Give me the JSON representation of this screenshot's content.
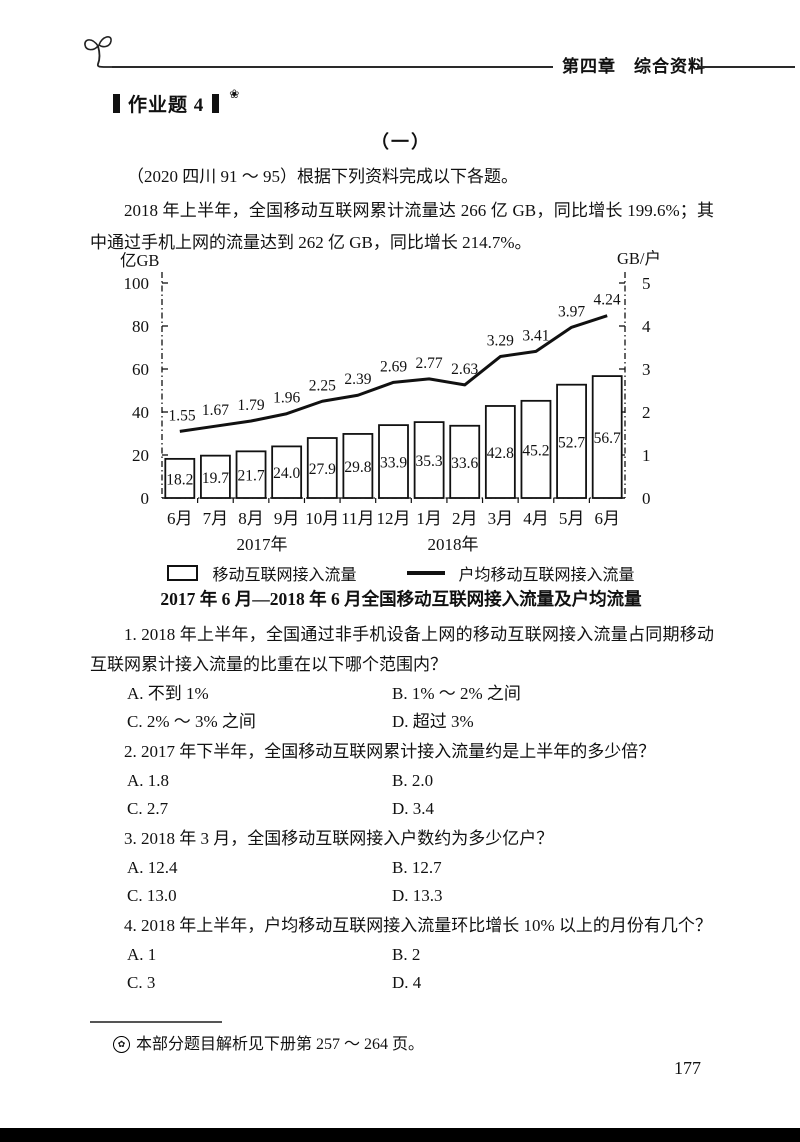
{
  "header": {
    "chapter": "第四章　综合资料"
  },
  "assignment": {
    "title": "作业题 4",
    "badge": "❀"
  },
  "part_heading": "（一）",
  "source_line": "（2020 四川 91 ～ 95）根据下列资料完成以下各题。",
  "intro_paragraph": "2018 年上半年，全国移动互联网累计流量达 266 亿 GB，同比增长 199.6%；其中通过手机上网的流量达到 262 亿 GB，同比增长 214.7%。",
  "chart_data": {
    "type": "bar+line",
    "title": "2017 年 6 月—2018 年 6 月全国移动互联网接入流量及户均流量",
    "categories": [
      "6月",
      "7月",
      "8月",
      "9月",
      "10月",
      "11月",
      "12月",
      "1月",
      "2月",
      "3月",
      "4月",
      "5月",
      "6月"
    ],
    "series": [
      {
        "name": "移动互联网接入流量",
        "type": "bar",
        "axis": "left",
        "values": [
          18.2,
          19.7,
          21.7,
          24.0,
          27.9,
          29.8,
          33.9,
          35.3,
          33.6,
          42.8,
          45.2,
          52.7,
          56.7
        ],
        "value_labels": [
          "18.2",
          "19.7",
          "21.7",
          "24.0",
          "27.9",
          "29.8",
          "33.9",
          "35.3",
          "33.6",
          "42.8",
          "45.2",
          "52.7",
          "56.7"
        ]
      },
      {
        "name": "户均移动互联网接入流量",
        "type": "line",
        "axis": "right",
        "values": [
          1.55,
          1.67,
          1.79,
          1.96,
          2.25,
          2.39,
          2.69,
          2.77,
          2.63,
          3.29,
          3.41,
          3.97,
          4.24
        ],
        "value_labels": [
          "1.55",
          "1.67",
          "1.79",
          "1.96",
          "2.25",
          "2.39",
          "2.69",
          "2.77",
          "2.63",
          "3.29",
          "3.41",
          "3.97",
          "4.24"
        ]
      }
    ],
    "left_axis": {
      "label": "亿GB",
      "ticks": [
        0,
        20,
        40,
        60,
        80,
        100
      ],
      "max": 100
    },
    "right_axis": {
      "label": "GB/户",
      "ticks": [
        0,
        1,
        2,
        3,
        4,
        5
      ],
      "max": 5
    },
    "year_groups": [
      "2017年",
      "2018年"
    ],
    "grid": false,
    "legend_position": "bottom",
    "bar_fill": "#ffffff",
    "stroke_color": "#111111"
  },
  "questions": [
    {
      "text": "1. 2018 年上半年，全国通过非手机设备上网的移动互联网接入流量占同期移动互联网累计接入流量的比重在以下哪个范围内？",
      "options": [
        "A. 不到 1%",
        "B. 1% ～ 2% 之间",
        "C. 2% ～ 3% 之间",
        "D. 超过 3%"
      ]
    },
    {
      "text": "2. 2017 年下半年，全国移动互联网累计接入流量约是上半年的多少倍？",
      "options": [
        "A. 1.8",
        "B. 2.0",
        "C. 2.7",
        "D. 3.4"
      ]
    },
    {
      "text": "3. 2018 年 3 月，全国移动互联网接入户数约为多少亿户？",
      "options": [
        "A. 12.4",
        "B. 12.7",
        "C. 13.0",
        "D. 13.3"
      ]
    },
    {
      "text": "4. 2018 年上半年，户均移动互联网接入流量环比增长 10% 以上的月份有几个？",
      "options": [
        "A. 1",
        "B. 2",
        "C. 3",
        "D. 4"
      ]
    }
  ],
  "footnote": {
    "badge": "✿",
    "text": "本部分题目解析见下册第 257 ～ 264 页。"
  },
  "page_number": "177"
}
